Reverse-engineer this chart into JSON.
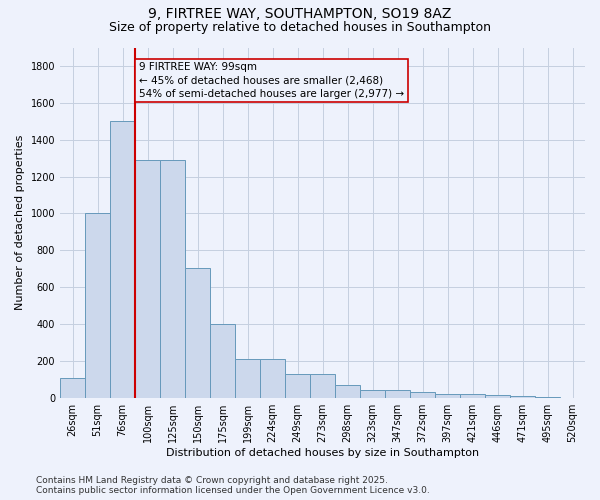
{
  "title_line1": "9, FIRTREE WAY, SOUTHAMPTON, SO19 8AZ",
  "title_line2": "Size of property relative to detached houses in Southampton",
  "xlabel": "Distribution of detached houses by size in Southampton",
  "ylabel": "Number of detached properties",
  "categories": [
    "26sqm",
    "51sqm",
    "76sqm",
    "100sqm",
    "125sqm",
    "150sqm",
    "175sqm",
    "199sqm",
    "224sqm",
    "249sqm",
    "273sqm",
    "298sqm",
    "323sqm",
    "347sqm",
    "372sqm",
    "397sqm",
    "421sqm",
    "446sqm",
    "471sqm",
    "495sqm",
    "520sqm"
  ],
  "values": [
    105,
    1000,
    1500,
    1290,
    1290,
    705,
    400,
    210,
    210,
    130,
    130,
    70,
    40,
    40,
    30,
    20,
    20,
    15,
    10,
    5,
    0
  ],
  "bar_color": "#ccd8ec",
  "bar_edge_color": "#6699bb",
  "vline_color": "#cc0000",
  "vline_index": 3,
  "annotation_title": "9 FIRTREE WAY: 99sqm",
  "annotation_line2": "← 45% of detached houses are smaller (2,468)",
  "annotation_line3": "54% of semi-detached houses are larger (2,977) →",
  "annotation_box_edgecolor": "#cc0000",
  "ylim": [
    0,
    1900
  ],
  "yticks": [
    0,
    200,
    400,
    600,
    800,
    1000,
    1200,
    1400,
    1600,
    1800
  ],
  "background_color": "#eef2fc",
  "grid_color": "#c5cfe0",
  "footer_line1": "Contains HM Land Registry data © Crown copyright and database right 2025.",
  "footer_line2": "Contains public sector information licensed under the Open Government Licence v3.0.",
  "title_fontsize": 10,
  "subtitle_fontsize": 9,
  "axis_label_fontsize": 8,
  "tick_fontsize": 7,
  "annotation_fontsize": 7.5,
  "footer_fontsize": 6.5,
  "ylabel_full": "Number of detached properties"
}
